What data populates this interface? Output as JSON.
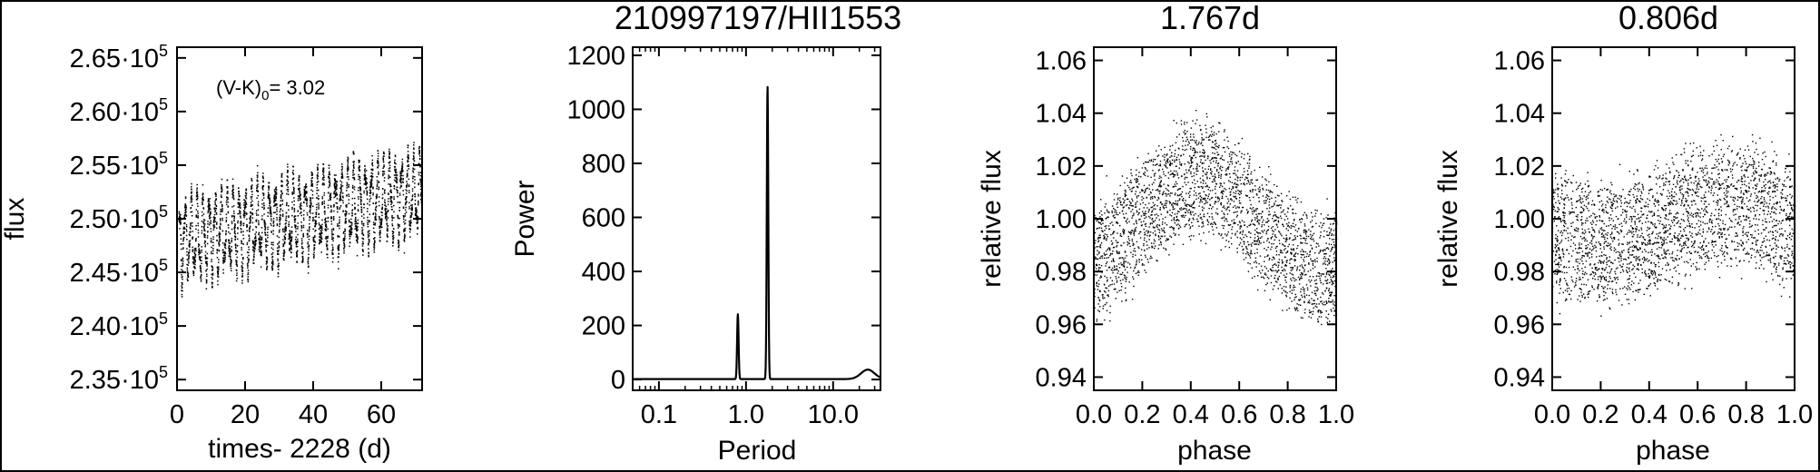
{
  "figure": {
    "title_main": "210997197/HII1553"
  },
  "chart_data": [
    {
      "type": "scatter",
      "panel": "light-curve",
      "title": "",
      "xlabel": "times- 2228 (d)",
      "ylabel": "flux",
      "annotation": "(V-K)₀= 3.02",
      "annotation_main": "(V-K)",
      "annotation_sub": "0",
      "annotation_value": "= 3.02",
      "xlim": [
        0,
        72
      ],
      "ylim": [
        234000,
        266000
      ],
      "x_ticks": [
        0,
        20,
        40,
        60
      ],
      "x_tick_labels": [
        "0",
        "20",
        "40",
        "60"
      ],
      "y_ticks": [
        235000,
        240000,
        245000,
        250000,
        255000,
        260000,
        265000
      ],
      "y_tick_mantissa": [
        "2.35",
        "2.40",
        "2.45",
        "2.50",
        "2.55",
        "2.60",
        "2.65"
      ],
      "y_tick_exp_base": "·10",
      "y_tick_exponent": "5",
      "trend": {
        "start": 248000,
        "end": 252500
      },
      "oscillations": [
        {
          "period_d": 1.767,
          "amplitude": 3200
        },
        {
          "period_d": 0.806,
          "amplitude": 1200
        }
      ]
    },
    {
      "type": "line",
      "panel": "periodogram",
      "title": "210997197/HII1553",
      "xlabel": "Period",
      "ylabel": "Power",
      "x_scale": "log",
      "xlim": [
        0.05,
        35
      ],
      "ylim": [
        -40,
        1230
      ],
      "x_ticks": [
        0.1,
        1.0,
        10.0
      ],
      "x_tick_labels": [
        "0.1",
        "1.0",
        "10.0"
      ],
      "y_ticks": [
        0,
        200,
        400,
        600,
        800,
        1000,
        1200
      ],
      "y_tick_labels": [
        "0",
        "200",
        "400",
        "600",
        "800",
        "1000",
        "1200"
      ],
      "peaks": [
        {
          "period": 0.806,
          "power": 240
        },
        {
          "period": 1.767,
          "power": 1085
        },
        {
          "period": 25.0,
          "power": 35
        }
      ]
    },
    {
      "type": "scatter",
      "panel": "phase-fold-1",
      "title": "1.767d",
      "xlabel": "phase",
      "ylabel": "relative flux",
      "xlim": [
        0.0,
        1.0
      ],
      "ylim": [
        0.935,
        1.065
      ],
      "x_ticks": [
        0.0,
        0.2,
        0.4,
        0.6,
        0.8,
        1.0
      ],
      "x_tick_labels": [
        "0.0",
        "0.2",
        "0.4",
        "0.6",
        "0.8",
        "1.0"
      ],
      "y_ticks": [
        0.94,
        0.96,
        0.98,
        1.0,
        1.02,
        1.04,
        1.06
      ],
      "y_tick_labels": [
        "0.94",
        "0.96",
        "0.98",
        "1.00",
        "1.02",
        "1.04",
        "1.06"
      ],
      "model": {
        "mean": 1.0,
        "amplitude": 0.017,
        "peak_phase": 0.43,
        "scatter": 0.011
      }
    },
    {
      "type": "scatter",
      "panel": "phase-fold-2",
      "title": "0.806d",
      "xlabel": "phase",
      "ylabel": "relative flux",
      "xlim": [
        0.0,
        1.0
      ],
      "ylim": [
        0.935,
        1.065
      ],
      "x_ticks": [
        0.0,
        0.2,
        0.4,
        0.6,
        0.8,
        1.0
      ],
      "x_tick_labels": [
        "0.0",
        "0.2",
        "0.4",
        "0.6",
        "0.8",
        "1.0"
      ],
      "y_ticks": [
        0.94,
        0.96,
        0.98,
        1.0,
        1.02,
        1.04,
        1.06
      ],
      "y_tick_labels": [
        "0.94",
        "0.96",
        "0.98",
        "1.00",
        "1.02",
        "1.04",
        "1.06"
      ],
      "model": {
        "mean": 1.0,
        "amplitude": 0.008,
        "peak_phase": 0.72,
        "scatter": 0.012
      }
    }
  ]
}
